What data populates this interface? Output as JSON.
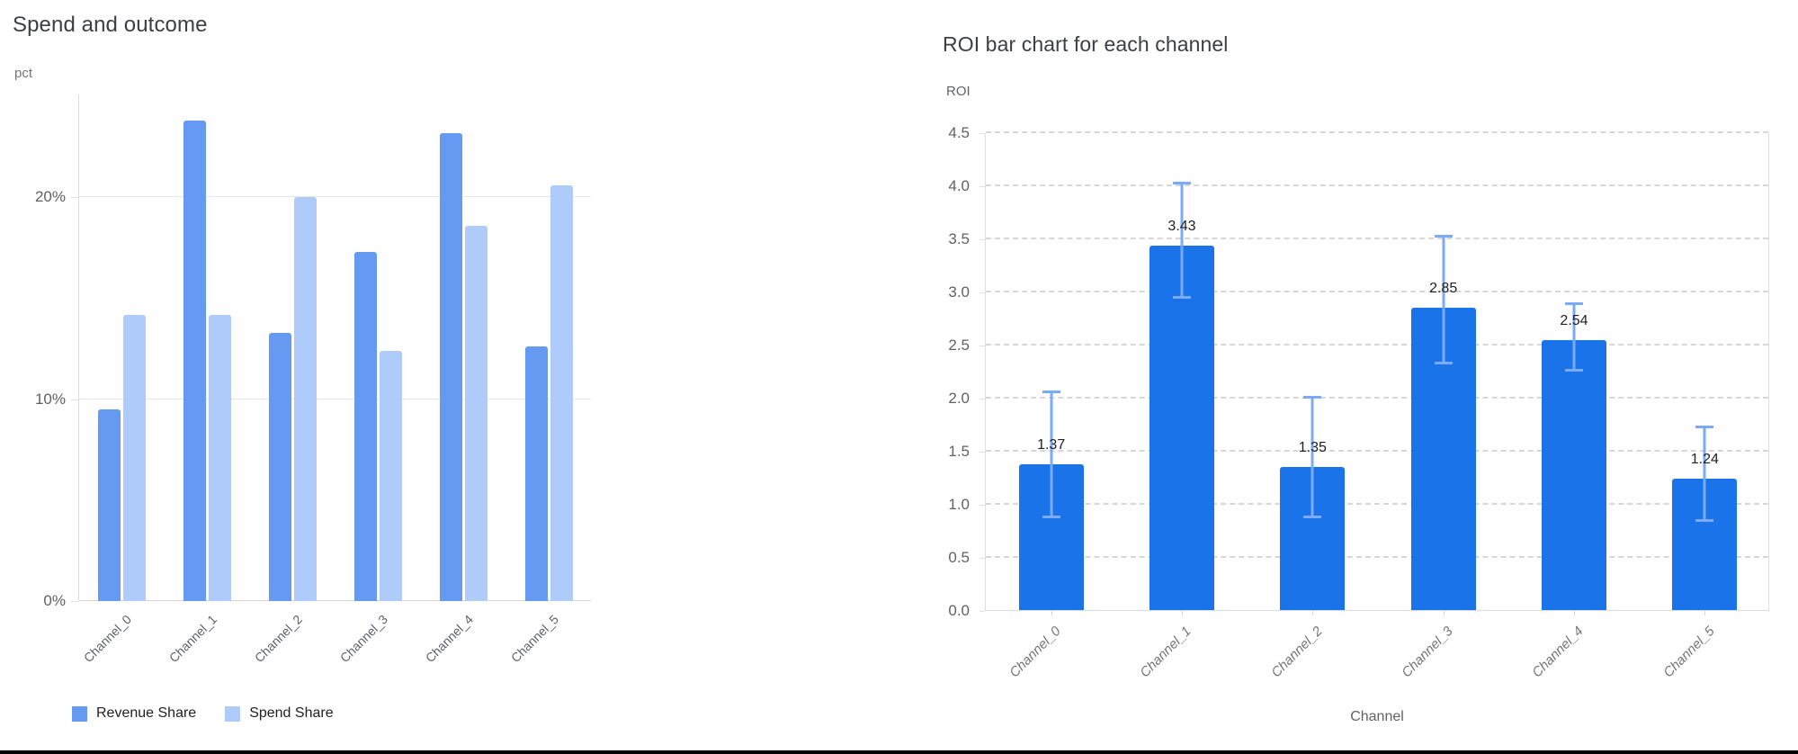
{
  "page": {
    "background": "#ffffff",
    "bottom_border_color": "#000000"
  },
  "chart_data": [
    {
      "type": "bar",
      "title": "Spend and outcome",
      "ylabel": "pct",
      "xlabel": "",
      "categories": [
        "Channel_0",
        "Channel_1",
        "Channel_2",
        "Channel_3",
        "Channel_4",
        "Channel_5"
      ],
      "series": [
        {
          "name": "Revenue Share",
          "color": "#6699f2",
          "values": [
            9.5,
            23.8,
            13.3,
            17.3,
            23.2,
            12.6
          ]
        },
        {
          "name": "Spend Share",
          "color": "#aecbfa",
          "values": [
            14.2,
            14.2,
            20.0,
            12.4,
            18.6,
            20.6
          ]
        }
      ],
      "yticks": [
        {
          "value": 0,
          "label": "0%"
        },
        {
          "value": 10,
          "label": "10%"
        },
        {
          "value": 20,
          "label": "20%"
        }
      ],
      "ylim": [
        0,
        25.1
      ],
      "grid": "solid horizontal",
      "legend_position": "bottom-left"
    },
    {
      "type": "bar",
      "title": "ROI bar chart for each channel",
      "ylabel": "ROI",
      "xlabel": "Channel",
      "categories": [
        "Channel_0",
        "Channel_1",
        "Channel_2",
        "Channel_3",
        "Channel_4",
        "Channel_5"
      ],
      "values": [
        1.37,
        3.43,
        1.35,
        2.85,
        2.54,
        1.24
      ],
      "value_labels": [
        "1.37",
        "3.43",
        "1.35",
        "2.85",
        "2.54",
        "1.24"
      ],
      "error_low": [
        0.88,
        2.95,
        0.88,
        2.33,
        2.26,
        0.85
      ],
      "error_high": [
        2.05,
        4.02,
        2.0,
        3.52,
        2.88,
        1.72
      ],
      "yticks": [
        {
          "value": 0.0,
          "label": "0.0"
        },
        {
          "value": 0.5,
          "label": "0.5"
        },
        {
          "value": 1.0,
          "label": "1.0"
        },
        {
          "value": 1.5,
          "label": "1.5"
        },
        {
          "value": 2.0,
          "label": "2.0"
        },
        {
          "value": 2.5,
          "label": "2.5"
        },
        {
          "value": 3.0,
          "label": "3.0"
        },
        {
          "value": 3.5,
          "label": "3.5"
        },
        {
          "value": 4.0,
          "label": "4.0"
        },
        {
          "value": 4.5,
          "label": "4.5"
        }
      ],
      "ylim": [
        0,
        4.5
      ],
      "bar_color": "#1a73e8",
      "error_color": "#7baaf7",
      "grid": "dashed horizontal",
      "legend_position": "none"
    }
  ]
}
